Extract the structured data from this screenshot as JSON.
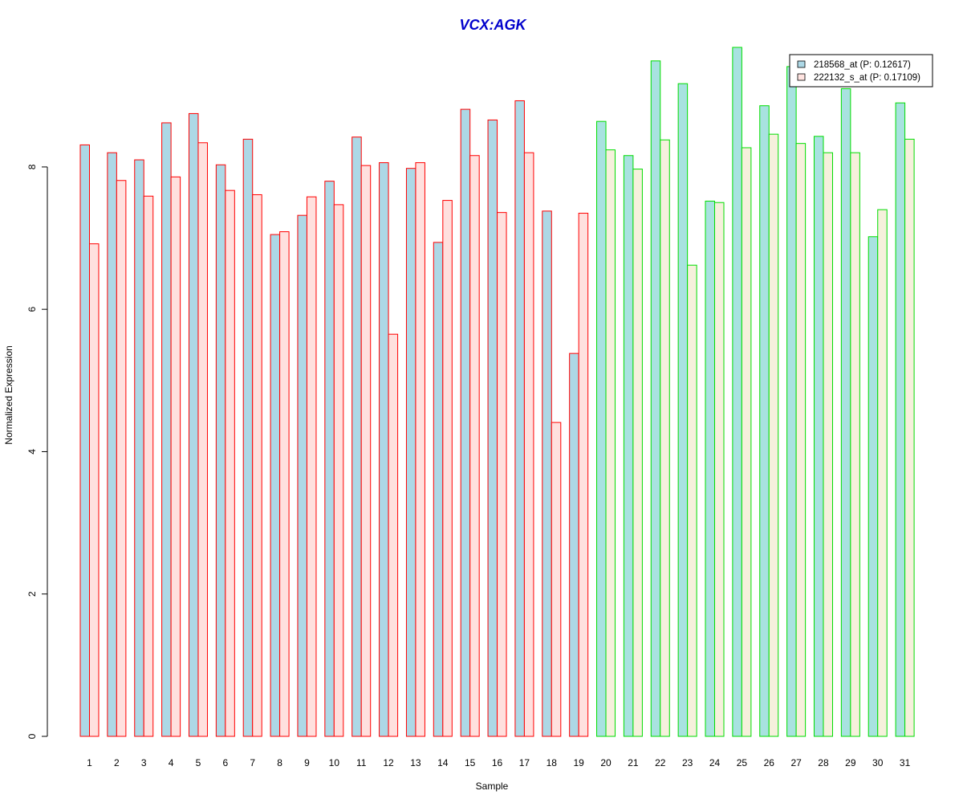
{
  "chart_data": {
    "type": "bar",
    "title": "VCX:AGK",
    "xlabel": "Sample",
    "ylabel": "Normalized Expression",
    "ylim": [
      0,
      10
    ],
    "yticks": [
      0,
      2,
      4,
      6,
      8
    ],
    "grid": false,
    "legend_position": "top-right",
    "categories": [
      "1",
      "2",
      "3",
      "4",
      "5",
      "6",
      "7",
      "8",
      "9",
      "10",
      "11",
      "12",
      "13",
      "14",
      "15",
      "16",
      "17",
      "18",
      "19",
      "20",
      "21",
      "22",
      "23",
      "24",
      "25",
      "26",
      "27",
      "28",
      "29",
      "30",
      "31"
    ],
    "groups": [
      {
        "samples": [
          1,
          19
        ],
        "outline_color": "#ff0000"
      },
      {
        "samples": [
          20,
          31
        ],
        "outline_color": "#00dd00"
      }
    ],
    "series": [
      {
        "name": "218568_at (P: 0.12617)",
        "fill_color_group1": "#add8e6",
        "fill_color_group2": "#a8e2e0",
        "values": [
          8.31,
          8.2,
          8.1,
          8.62,
          8.75,
          8.03,
          8.39,
          7.05,
          7.32,
          7.8,
          8.42,
          8.06,
          7.98,
          6.94,
          8.81,
          8.66,
          8.93,
          7.38,
          5.38,
          8.64,
          8.16,
          9.49,
          9.17,
          7.52,
          9.68,
          8.86,
          9.41,
          8.43,
          9.1,
          7.02,
          8.9
        ]
      },
      {
        "name": "222132_s_at (P: 0.17109)",
        "fill_color_group1": "#ffe0de",
        "fill_color_group2": "#f6f0dc",
        "values": [
          6.92,
          7.81,
          7.59,
          7.86,
          8.34,
          7.67,
          7.61,
          7.09,
          7.58,
          7.47,
          8.02,
          5.65,
          8.06,
          7.53,
          8.16,
          7.36,
          8.2,
          4.41,
          7.35,
          8.24,
          7.97,
          8.38,
          6.62,
          7.5,
          8.27,
          8.46,
          8.33,
          8.2,
          8.2,
          7.4,
          8.39
        ]
      }
    ],
    "colors": {
      "title": "#0000cc",
      "legend_swatch_1": "#add8e6",
      "legend_swatch_2": "#ffe4e1"
    }
  }
}
